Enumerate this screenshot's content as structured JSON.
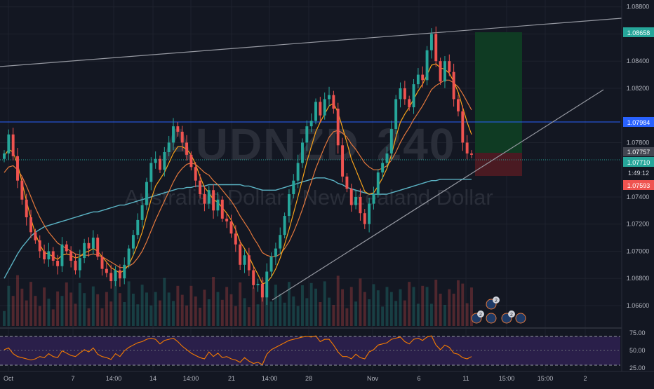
{
  "watermark": {
    "symbol_part1": "AUDNZD",
    "symbol_part2": "240",
    "description": "Australian Dollar / New Zealand Dollar"
  },
  "colors": {
    "background": "#131722",
    "grid": "#1e222d",
    "up": "#26a69a",
    "down": "#ef5350",
    "ma_fast": "#f7a21b",
    "ma_slow": "#e4783c",
    "ma_long": "#5bb3c4",
    "rsi_line": "#f57c00",
    "rsi_band": "#2a1f4a",
    "target_zone": "#0f3b23",
    "stop_zone": "#4a1a22",
    "level_blue": "#2962ff"
  },
  "price_axis": {
    "ticks": [
      "1.08800",
      "1.08600",
      "1.08400",
      "1.08200",
      "1.07800",
      "1.07400",
      "1.07200",
      "1.07000",
      "1.06800",
      "1.06600"
    ],
    "ticks_values": [
      1.088,
      1.086,
      1.084,
      1.082,
      1.078,
      1.074,
      1.072,
      1.07,
      1.068,
      1.066
    ],
    "tag_target": "1.08658",
    "tag_resistance": "1.07984",
    "tag_last": "1.07757",
    "tag_current": "1.07710",
    "tag_countdown": "1:49:12",
    "tag_stop": "1.07593"
  },
  "rsi_axis": {
    "ticks": [
      "75.00",
      "50.00",
      "25.00"
    ]
  },
  "time_axis": {
    "labels": [
      "Oct",
      "7",
      "14:00",
      "14",
      "14:00",
      "21",
      "14:00",
      "28",
      "Nov",
      "6",
      "11",
      "15:00",
      "15:00",
      "2"
    ]
  },
  "events": {
    "badge_count": "2",
    "badge_count2": "2"
  },
  "chart_data": {
    "type": "candlestick",
    "symbol": "AUDNZD",
    "interval": "240",
    "ylim": [
      1.0645,
      1.0885
    ],
    "close_series": [
      1.0772,
      1.0786,
      1.077,
      1.0752,
      1.0738,
      1.0725,
      1.0714,
      1.0708,
      1.07,
      1.0694,
      1.07,
      1.0693,
      1.0689,
      1.0705,
      1.07,
      1.0693,
      1.0686,
      1.0695,
      1.0706,
      1.0702,
      1.071,
      1.0696,
      1.0687,
      1.0684,
      1.0678,
      1.0686,
      1.068,
      1.069,
      1.0702,
      1.0712,
      1.0723,
      1.0734,
      1.0751,
      1.0765,
      1.0768,
      1.076,
      1.0773,
      1.078,
      1.0792,
      1.0788,
      1.078,
      1.0771,
      1.0762,
      1.0752,
      1.0742,
      1.0735,
      1.0745,
      1.073,
      1.0738,
      1.0724,
      1.0722,
      1.0713,
      1.0705,
      1.069,
      1.0697,
      1.0686,
      1.0675,
      1.0676,
      1.0666,
      1.0685,
      1.0696,
      1.0702,
      1.0712,
      1.0726,
      1.0742,
      1.0752,
      1.0765,
      1.078,
      1.0792,
      1.0796,
      1.081,
      1.08,
      1.0812,
      1.0815,
      1.0805,
      1.0778,
      1.0755,
      1.0746,
      1.0734,
      1.074,
      1.0728,
      1.072,
      1.0735,
      1.0742,
      1.0758,
      1.0765,
      1.0772,
      1.079,
      1.0812,
      1.082,
      1.0812,
      1.0806,
      1.0823,
      1.083,
      1.0826,
      1.0848,
      1.086,
      1.084,
      1.0825,
      1.084,
      1.0832,
      1.0812,
      1.0803,
      1.078,
      1.0772,
      1.0771
    ],
    "ma_fast": [
      1.077,
      1.0775,
      1.0773,
      1.0764,
      1.0751,
      1.0737,
      1.0724,
      1.0713,
      1.0705,
      1.0699,
      1.0698,
      1.0696,
      1.0694,
      1.0697,
      1.0698,
      1.0697,
      1.0695,
      1.0696,
      1.0699,
      1.07,
      1.0702,
      1.07,
      1.0696,
      1.0692,
      1.0688,
      1.0686,
      1.0684,
      1.0686,
      1.069,
      1.0697,
      1.0705,
      1.0714,
      1.0726,
      1.0738,
      1.0748,
      1.0753,
      1.0758,
      1.0765,
      1.0772,
      1.0777,
      1.0777,
      1.0775,
      1.0771,
      1.0764,
      1.0755,
      1.0747,
      1.0743,
      1.0738,
      1.0736,
      1.0732,
      1.0728,
      1.0723,
      1.0716,
      1.0707,
      1.0702,
      1.0696,
      1.0689,
      1.0683,
      1.0676,
      1.0677,
      1.0681,
      1.0687,
      1.0695,
      1.0705,
      1.0716,
      1.0728,
      1.074,
      1.0753,
      1.0766,
      1.0777,
      1.0788,
      1.0795,
      1.0801,
      1.0807,
      1.0809,
      1.0802,
      1.0791,
      1.078,
      1.0768,
      1.076,
      1.0752,
      1.0744,
      1.0742,
      1.0743,
      1.0748,
      1.0754,
      1.0761,
      1.0771,
      1.0784,
      1.0795,
      1.0801,
      1.0806,
      1.0812,
      1.0818,
      1.0823,
      1.083,
      1.0837,
      1.0838,
      1.0835,
      1.0834,
      1.0831,
      1.0825,
      1.0817,
      1.0806,
      1.0795,
      1.0786
    ],
    "ma_slow": [
      1.0758,
      1.0762,
      1.0763,
      1.076,
      1.0755,
      1.0748,
      1.074,
      1.0732,
      1.0725,
      1.0719,
      1.0714,
      1.071,
      1.0706,
      1.0704,
      1.0702,
      1.07,
      1.0698,
      1.0697,
      1.0697,
      1.0697,
      1.0698,
      1.0697,
      1.0696,
      1.0694,
      1.0692,
      1.069,
      1.0688,
      1.0688,
      1.0689,
      1.0691,
      1.0695,
      1.07,
      1.0707,
      1.0715,
      1.0723,
      1.073,
      1.0737,
      1.0744,
      1.0751,
      1.0757,
      1.0761,
      1.0764,
      1.0765,
      1.0764,
      1.0761,
      1.0758,
      1.0756,
      1.0752,
      1.0749,
      1.0745,
      1.0741,
      1.0737,
      1.0732,
      1.0726,
      1.0721,
      1.0716,
      1.071,
      1.0705,
      1.0699,
      1.0697,
      1.0696,
      1.0696,
      1.0698,
      1.0702,
      1.0707,
      1.0714,
      1.0722,
      1.0731,
      1.0741,
      1.0751,
      1.0761,
      1.0769,
      1.0777,
      1.0784,
      1.0788,
      1.0789,
      1.0787,
      1.0784,
      1.0779,
      1.0775,
      1.077,
      1.0765,
      1.0762,
      1.076,
      1.076,
      1.0761,
      1.0763,
      1.0767,
      1.0773,
      1.078,
      1.0786,
      1.0791,
      1.0797,
      1.0802,
      1.0807,
      1.0813,
      1.0819,
      1.0822,
      1.0824,
      1.0826,
      1.0826,
      1.0824,
      1.0821,
      1.0816,
      1.081,
      1.0804
    ],
    "ma_long": [
      1.068,
      1.0686,
      1.0692,
      1.0698,
      1.0703,
      1.0707,
      1.0711,
      1.0714,
      1.0716,
      1.0718,
      1.0719,
      1.072,
      1.0721,
      1.0722,
      1.0723,
      1.0724,
      1.0725,
      1.0726,
      1.0727,
      1.0728,
      1.0729,
      1.0729,
      1.073,
      1.0731,
      1.0732,
      1.0733,
      1.0734,
      1.0734,
      1.0735,
      1.0736,
      1.0737,
      1.0738,
      1.0739,
      1.074,
      1.0741,
      1.0742,
      1.0743,
      1.0744,
      1.0745,
      1.0746,
      1.0746,
      1.0747,
      1.0747,
      1.0748,
      1.0748,
      1.0748,
      1.0749,
      1.0749,
      1.0749,
      1.0749,
      1.0749,
      1.0749,
      1.0749,
      1.0749,
      1.0748,
      1.0748,
      1.0747,
      1.0746,
      1.0745,
      1.0745,
      1.0745,
      1.0745,
      1.0746,
      1.0747,
      1.0748,
      1.0749,
      1.075,
      1.0751,
      1.0752,
      1.0753,
      1.0754,
      1.0754,
      1.0754,
      1.0753,
      1.0752,
      1.075,
      1.0749,
      1.0747,
      1.0746,
      1.0745,
      1.0744,
      1.0743,
      1.0742,
      1.0742,
      1.0742,
      1.0742,
      1.0742,
      1.0743,
      1.0744,
      1.0745,
      1.0746,
      1.0747,
      1.0748,
      1.0749,
      1.075,
      1.0751,
      1.0752,
      1.0752,
      1.0753,
      1.0753,
      1.0753,
      1.0753,
      1.0753,
      1.0753,
      1.0753,
      1.0753
    ],
    "rsi": [
      52,
      55,
      45,
      40,
      38,
      36,
      34,
      36,
      40,
      38,
      45,
      40,
      38,
      50,
      46,
      42,
      40,
      46,
      52,
      48,
      55,
      44,
      40,
      38,
      35,
      45,
      40,
      50,
      56,
      60,
      64,
      66,
      70,
      72,
      70,
      62,
      68,
      70,
      72,
      66,
      58,
      52,
      46,
      42,
      38,
      36,
      48,
      40,
      46,
      38,
      40,
      36,
      34,
      30,
      38,
      32,
      28,
      30,
      26,
      44,
      52,
      56,
      60,
      64,
      68,
      70,
      72,
      74,
      75,
      74,
      76,
      66,
      70,
      70,
      60,
      48,
      40,
      40,
      36,
      44,
      38,
      36,
      48,
      52,
      60,
      62,
      64,
      70,
      72,
      74,
      66,
      62,
      70,
      72,
      68,
      74,
      76,
      60,
      52,
      60,
      56,
      46,
      44,
      38,
      36,
      40
    ]
  }
}
